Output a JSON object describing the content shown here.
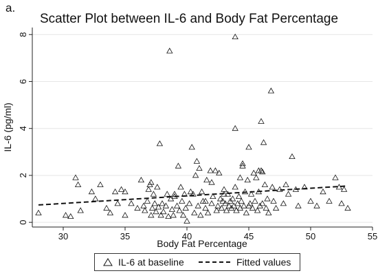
{
  "panel_label": "a.",
  "chart_data": {
    "type": "scatter",
    "title": "Scatter Plot between IL-6 and Body Fat Percentage",
    "xlabel": "Body Fat Percentage",
    "ylabel": "IL-6 (pg/ml)",
    "xlim": [
      27.5,
      55
    ],
    "ylim": [
      -0.2,
      8.3
    ],
    "xticks": [
      "30",
      "35",
      "40",
      "45",
      "50",
      "55"
    ],
    "yticks": [
      "0",
      "2",
      "4",
      "6",
      "8"
    ],
    "grid": "horizontal",
    "legend_position": "bottom",
    "series": [
      {
        "name": "IL-6 at baseline",
        "marker": "hollow-triangle",
        "points": [
          [
            28,
            0.4
          ],
          [
            30.2,
            0.3
          ],
          [
            30.6,
            0.25
          ],
          [
            31,
            1.9
          ],
          [
            31.2,
            1.6
          ],
          [
            31.4,
            0.5
          ],
          [
            32.3,
            1.3
          ],
          [
            32.6,
            1.0
          ],
          [
            33,
            1.6
          ],
          [
            33.5,
            0.6
          ],
          [
            33.8,
            0.4
          ],
          [
            34.2,
            1.3
          ],
          [
            34.4,
            0.8
          ],
          [
            34.7,
            1.4
          ],
          [
            35,
            0.3
          ],
          [
            35.5,
            0.8
          ],
          [
            36.3,
            1.8
          ],
          [
            36.5,
            0.7
          ],
          [
            36.6,
            0.5
          ],
          [
            36.8,
            0.9
          ],
          [
            36.9,
            1.4
          ],
          [
            37.0,
            1.6
          ],
          [
            37.1,
            1.7
          ],
          [
            37.1,
            0.3
          ],
          [
            37.2,
            0.6
          ],
          [
            37.3,
            1.2
          ],
          [
            37.4,
            0.8
          ],
          [
            37.5,
            0.45
          ],
          [
            37.6,
            1.5
          ],
          [
            37.7,
            0.65
          ],
          [
            37.8,
            3.35
          ],
          [
            37.9,
            0.3
          ],
          [
            38.0,
            0.8
          ],
          [
            38.1,
            0.45
          ],
          [
            38.3,
            0.7
          ],
          [
            38.4,
            1.2
          ],
          [
            38.5,
            0.25
          ],
          [
            38.6,
            7.3
          ],
          [
            38.7,
            1.0
          ],
          [
            38.8,
            0.55
          ],
          [
            38.9,
            0.3
          ],
          [
            39.0,
            1.1
          ],
          [
            39.2,
            0.7
          ],
          [
            39.3,
            2.4
          ],
          [
            39.4,
            0.5
          ],
          [
            39.5,
            1.5
          ],
          [
            39.6,
            0.9
          ],
          [
            39.7,
            0.3
          ],
          [
            39.8,
            1.2
          ],
          [
            39.9,
            0.6
          ],
          [
            40.0,
            0.05
          ],
          [
            40.2,
            0.8
          ],
          [
            40.4,
            3.2
          ],
          [
            40.5,
            1.2
          ],
          [
            40.6,
            0.4
          ],
          [
            40.7,
            2.0
          ],
          [
            40.8,
            2.6
          ],
          [
            40.9,
            0.7
          ],
          [
            41.0,
            2.3
          ],
          [
            41.1,
            0.3
          ],
          [
            41.2,
            1.3
          ],
          [
            41.3,
            0.9
          ],
          [
            41.5,
            0.6
          ],
          [
            41.6,
            1.8
          ],
          [
            41.7,
            0.4
          ],
          [
            41.9,
            2.2
          ],
          [
            42.0,
            0.8
          ],
          [
            42.1,
            1.1
          ],
          [
            42.3,
            2.2
          ],
          [
            42.4,
            0.5
          ],
          [
            42.5,
            0.7
          ],
          [
            42.6,
            2.1
          ],
          [
            42.7,
            1.0
          ],
          [
            42.8,
            0.6
          ],
          [
            42.9,
            0.9
          ],
          [
            43.0,
            1.4
          ],
          [
            43.1,
            0.8
          ],
          [
            43.2,
            0.5
          ],
          [
            43.3,
            1.2
          ],
          [
            43.4,
            0.7
          ],
          [
            43.5,
            0.9
          ],
          [
            43.6,
            0.6
          ],
          [
            43.7,
            1.0
          ],
          [
            43.8,
            0.7
          ],
          [
            43.9,
            1.5
          ],
          [
            44.0,
            0.5
          ],
          [
            44.1,
            0.8
          ],
          [
            44.2,
            1.1
          ],
          [
            44.3,
            0.6
          ],
          [
            44.4,
            0.9
          ],
          [
            44.5,
            2.5
          ],
          [
            44.6,
            0.7
          ],
          [
            44.7,
            1.3
          ],
          [
            44.8,
            0.4
          ],
          [
            44.9,
            1.8
          ],
          [
            45.0,
            3.2
          ],
          [
            45.1,
            0.8
          ],
          [
            45.2,
            1.2
          ],
          [
            45.3,
            0.6
          ],
          [
            45.4,
            2.1
          ],
          [
            45.5,
            0.9
          ],
          [
            45.6,
            1.9
          ],
          [
            45.7,
            0.5
          ],
          [
            45.8,
            1.3
          ],
          [
            45.9,
            0.7
          ],
          [
            46.0,
            2.2
          ],
          [
            46.1,
            0.8
          ],
          [
            46.2,
            3.4
          ],
          [
            46.3,
            1.6
          ],
          [
            46.4,
            0.6
          ],
          [
            46.5,
            1.0
          ],
          [
            46.6,
            0.4
          ],
          [
            46.8,
            5.6
          ],
          [
            46.9,
            1.5
          ],
          [
            47.0,
            0.9
          ],
          [
            47.2,
            0.6
          ],
          [
            47.5,
            1.4
          ],
          [
            47.8,
            0.8
          ],
          [
            48.0,
            1.6
          ],
          [
            48.2,
            1.2
          ],
          [
            48.5,
            2.8
          ],
          [
            48.8,
            1.4
          ],
          [
            49.0,
            0.7
          ],
          [
            49.5,
            1.5
          ],
          [
            50.0,
            0.9
          ],
          [
            50.5,
            0.7
          ],
          [
            51.0,
            1.3
          ],
          [
            51.5,
            0.9
          ],
          [
            52.0,
            1.9
          ],
          [
            52.3,
            1.5
          ],
          [
            52.5,
            0.8
          ],
          [
            52.7,
            1.4
          ],
          [
            53.0,
            0.6
          ],
          [
            43.9,
            7.9
          ],
          [
            43.9,
            4.0
          ],
          [
            46.0,
            4.3
          ],
          [
            44.5,
            2.4
          ],
          [
            45.8,
            2.2
          ],
          [
            46.1,
            2.15
          ],
          [
            44.3,
            1.9
          ],
          [
            42.0,
            1.7
          ],
          [
            43.0,
            1.2
          ],
          [
            45.0,
            0.7
          ],
          [
            39.0,
            1.2
          ],
          [
            36.0,
            0.6
          ],
          [
            35.0,
            1.3
          ],
          [
            41.5,
            0.9
          ],
          [
            40.3,
            1.3
          ]
        ]
      },
      {
        "name": "Fitted values",
        "line_style": "dashed",
        "points": [
          [
            28,
            0.74
          ],
          [
            53,
            1.55
          ]
        ]
      }
    ]
  }
}
